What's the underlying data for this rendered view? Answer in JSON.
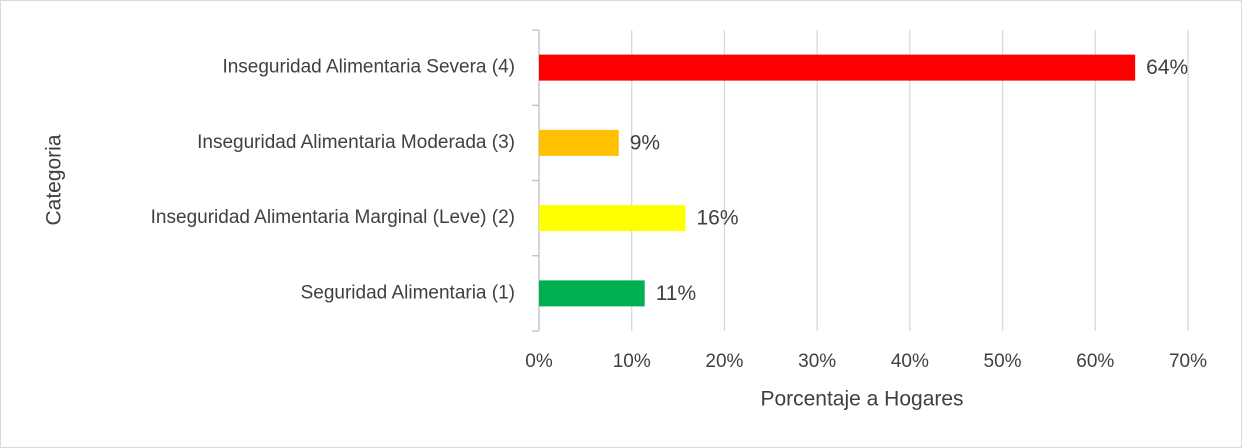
{
  "chart_data": {
    "type": "barh",
    "categories": [
      "Inseguridad Alimentaria Severa (4)",
      "Inseguridad Alimentaria Moderada (3)",
      "Inseguridad Alimentaria Marginal (Leve) (2)",
      "Seguridad Alimentaria (1)"
    ],
    "values": [
      64.3,
      8.6,
      15.8,
      11.4
    ],
    "value_labels": [
      "64%",
      "9%",
      "16%",
      "11%"
    ],
    "colors": [
      "#ff0000",
      "#ffc000",
      "#ffff00",
      "#00b050"
    ],
    "xlim": [
      0,
      70
    ],
    "xticks": [
      {
        "value": 0,
        "label": "0%"
      },
      {
        "value": 10,
        "label": "10%"
      },
      {
        "value": 20,
        "label": "20%"
      },
      {
        "value": 30,
        "label": "30%"
      },
      {
        "value": 40,
        "label": "40%"
      },
      {
        "value": 50,
        "label": "50%"
      },
      {
        "value": 60,
        "label": "60%"
      },
      {
        "value": 70,
        "label": "70%"
      }
    ],
    "xlabel": "Porcentaje a Hogares",
    "ylabel": "Categoria",
    "grid": true
  }
}
